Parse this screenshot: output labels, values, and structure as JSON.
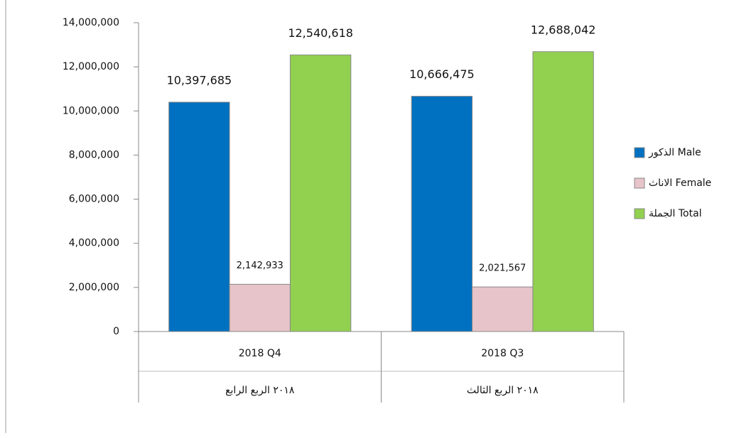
{
  "chart_data": {
    "type": "bar",
    "categories": [
      [
        "2018 Q4",
        "٢٠١٨ الربع الرابع"
      ],
      [
        "2018 Q3",
        "٢٠١٨ الربع الثالث"
      ]
    ],
    "series": [
      {
        "name": "الذكور Male",
        "color": "#0070c0",
        "values": [
          10397685,
          10666475
        ],
        "value_labels": [
          "10,397,685",
          "10,666,475"
        ]
      },
      {
        "name": "الاناث Female",
        "color": "#e6c4c9",
        "values": [
          2142933,
          2021567
        ],
        "value_labels": [
          "2,142,933",
          "2,021,567"
        ]
      },
      {
        "name": "الجملة Total",
        "color": "#92d050",
        "values": [
          12540618,
          12688042
        ],
        "value_labels": [
          "12,540,618",
          "12,688,042"
        ]
      }
    ],
    "ylim": [
      0,
      14000000
    ],
    "yticks": [
      {
        "value": 0,
        "label": "0"
      },
      {
        "value": 2000000,
        "label": "2,000,000"
      },
      {
        "value": 4000000,
        "label": "4,000,000"
      },
      {
        "value": 6000000,
        "label": "6,000,000"
      },
      {
        "value": 8000000,
        "label": "8,000,000"
      },
      {
        "value": 10000000,
        "label": "10,000,000"
      },
      {
        "value": 12000000,
        "label": "12,000,000"
      },
      {
        "value": 14000000,
        "label": "14,000,000"
      }
    ],
    "legend": "right"
  }
}
